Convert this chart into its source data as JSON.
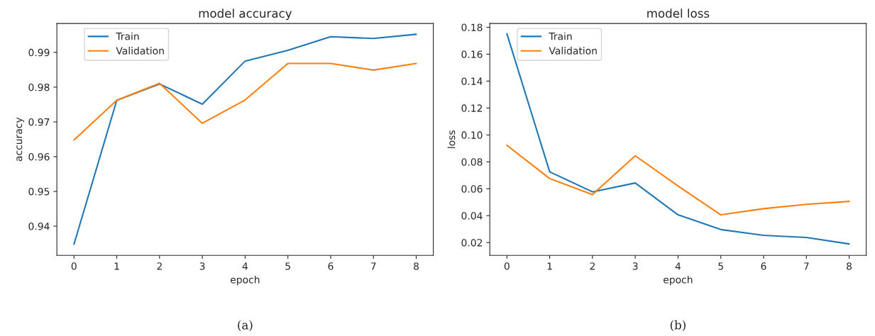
{
  "chart_data": [
    {
      "type": "line",
      "title": "model accuracy",
      "xlabel": "epoch",
      "ylabel": "accuracy",
      "x": [
        0,
        1,
        2,
        3,
        4,
        5,
        6,
        7,
        8
      ],
      "series": [
        {
          "name": "Train",
          "color": "#1f77b4",
          "values": [
            0.9348,
            0.9762,
            0.9809,
            0.9751,
            0.9875,
            0.9906,
            0.9945,
            0.994,
            0.9952
          ]
        },
        {
          "name": "Validation",
          "color": "#ff7f0e",
          "values": [
            0.9648,
            0.9762,
            0.9811,
            0.9696,
            0.9763,
            0.9868,
            0.9868,
            0.9849,
            0.9868
          ]
        }
      ],
      "xlim": [
        -0.4,
        8.4
      ],
      "xticks": [
        0,
        1,
        2,
        3,
        4,
        5,
        6,
        7,
        8
      ],
      "ylim": [
        0.9316,
        0.9983
      ],
      "yticks": [
        0.94,
        0.95,
        0.96,
        0.97,
        0.98,
        0.99
      ],
      "legend": "top left",
      "grid": false,
      "annotations": [
        "(a)"
      ]
    },
    {
      "type": "line",
      "title": "model loss",
      "xlabel": "epoch",
      "ylabel": "loss",
      "x": [
        0,
        1,
        2,
        3,
        4,
        5,
        6,
        7,
        8
      ],
      "series": [
        {
          "name": "Train",
          "color": "#1f77b4",
          "values": [
            0.1752,
            0.0726,
            0.0577,
            0.0643,
            0.0406,
            0.0297,
            0.0254,
            0.0238,
            0.019
          ]
        },
        {
          "name": "Validation",
          "color": "#ff7f0e",
          "values": [
            0.0923,
            0.0676,
            0.0557,
            0.0845,
            0.0621,
            0.0406,
            0.0452,
            0.0484,
            0.0506
          ]
        }
      ],
      "xlim": [
        -0.4,
        8.4
      ],
      "xticks": [
        0,
        1,
        2,
        3,
        4,
        5,
        6,
        7,
        8
      ],
      "ylim": [
        0.0105,
        0.1828
      ],
      "yticks": [
        {
          "value": 0.02,
          "label": "0.02"
        },
        {
          "value": 0.04,
          "label": "0.04"
        },
        {
          "value": 0.06,
          "label": "0.06"
        },
        {
          "value": 0.08,
          "label": "0.08"
        },
        {
          "value": 0.1,
          "label": "0.10"
        },
        {
          "value": 0.12,
          "label": "0.12"
        },
        {
          "value": 0.14,
          "label": "0.14"
        },
        {
          "value": 0.16,
          "label": "0.16"
        },
        {
          "value": 0.18,
          "label": "0.18"
        }
      ],
      "legend": "top left",
      "grid": false,
      "annotations": [
        "(b)"
      ]
    }
  ]
}
